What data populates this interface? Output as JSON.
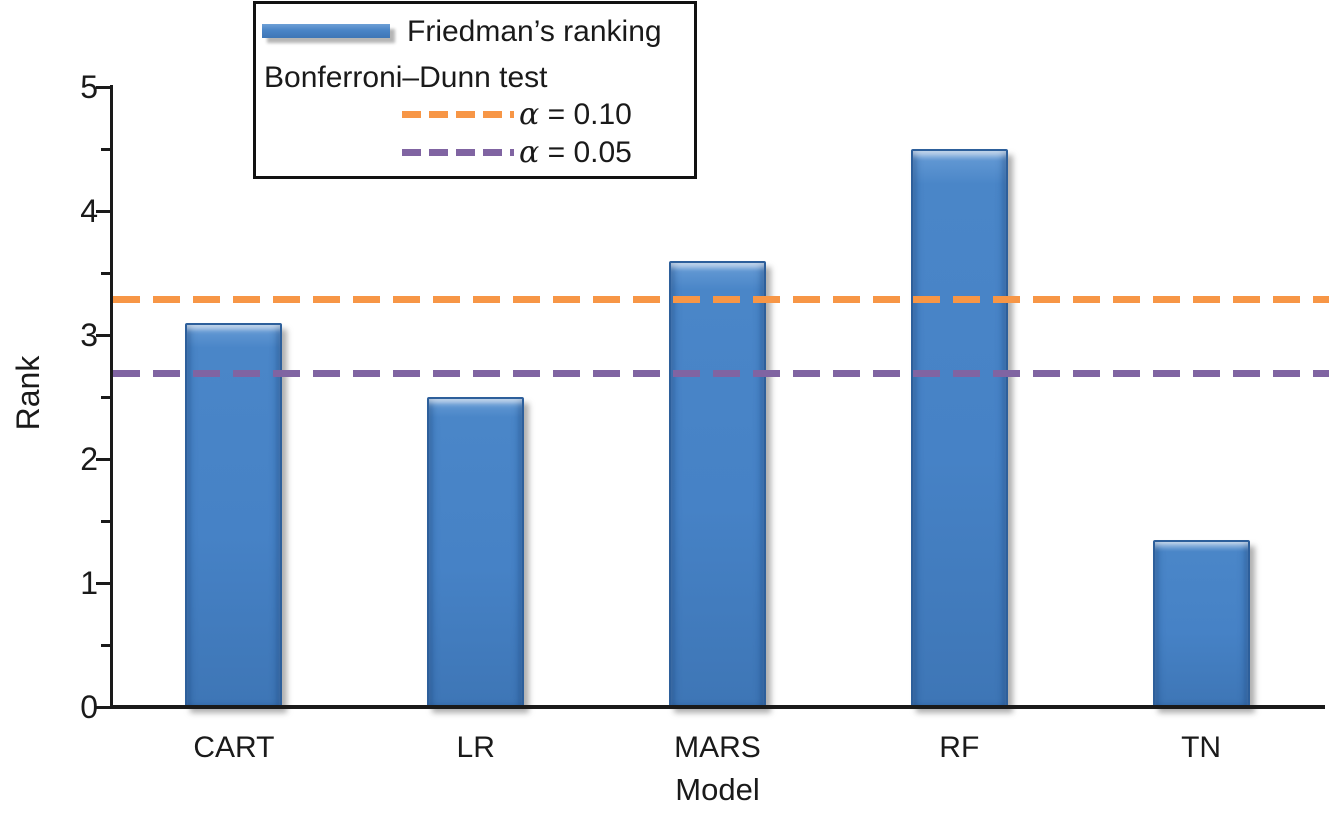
{
  "chart_data": {
    "type": "bar",
    "title": "",
    "xlabel": "Model",
    "ylabel": "Rank",
    "categories": [
      "CART",
      "LR",
      "MARS",
      "RF",
      "TN"
    ],
    "series": [
      {
        "name": "Friedman’s ranking",
        "values": [
          3.1,
          2.5,
          3.6,
          4.5,
          1.35
        ]
      }
    ],
    "ylim": [
      0,
      5
    ],
    "y_tick_labels": [
      "0",
      "1",
      "2",
      "3",
      "4",
      "5"
    ],
    "y_major_tick_step": 1,
    "y_minor_tick_step": 0.5,
    "grid": false,
    "legend_position": "top-left-inset",
    "bar_color": "#4480C2",
    "axis_color": "#1a1a1a",
    "legend": {
      "series_label": "Friedman’s ranking",
      "group_label": "Bonferroni–Dunn test"
    },
    "reference_lines": [
      {
        "symbol": "α",
        "label": "= 0.10",
        "value": 3.29,
        "color": "#F79646",
        "style": "dashed"
      },
      {
        "symbol": "α",
        "label": "= 0.05",
        "value": 2.69,
        "color": "#8064A2",
        "style": "dashed"
      }
    ]
  }
}
